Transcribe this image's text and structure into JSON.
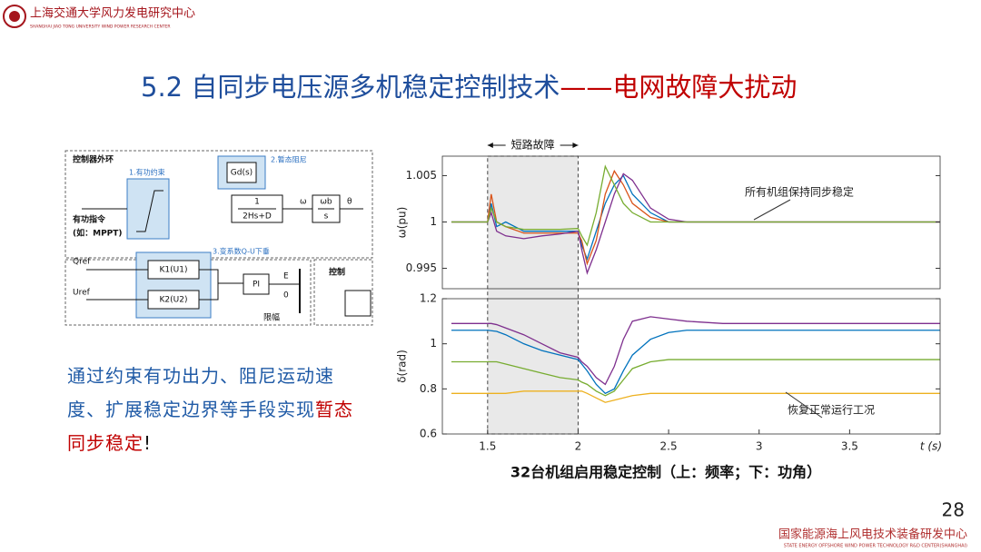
{
  "header": {
    "logo_text": "上海交通大学风力发电研究中心",
    "logo_subtext": "SHANGHAI JIAO TONG UNIVERSITY WIND POWER RESEARCH CENTER"
  },
  "title": {
    "main": "5.2 自同步电压源多机稳定控制技术",
    "highlight": "——电网故障大扰动"
  },
  "diagram": {
    "outer_loop": "控制器外环",
    "block1": "1.有功约束",
    "block2": "2.暂态阻尼",
    "block3": "3.变系数Q-U下垂",
    "p_cmd": "有功指令",
    "p_cmd_note": "(如：MPPT)",
    "gd": "Gd(s)",
    "swing_num": "1",
    "swing_den": "2Hs+D",
    "wb": "ωb",
    "s": "s",
    "theta": "θ",
    "omega": "ω",
    "k1": "K1(U1)",
    "k2": "K2(U2)",
    "pi": "PI",
    "e": "E",
    "zero": "0",
    "q_ref": "Qref",
    "u_ref": "Uref",
    "limit": "限幅",
    "ctrl": "控制"
  },
  "body_text": {
    "part1": "通过约束有功出力、阻尼运动速度、扩展稳定边界等手段实现",
    "part2": "暂态同步稳定",
    "part3": "!"
  },
  "chart_data": [
    {
      "type": "line",
      "ylabel": "ω(pu)",
      "x": [
        1.3,
        1.5,
        1.52,
        1.55,
        1.6,
        1.7,
        1.8,
        1.9,
        2.0,
        2.02,
        2.05,
        2.1,
        2.15,
        2.2,
        2.25,
        2.3,
        2.4,
        2.5,
        2.6,
        2.8,
        3.0,
        3.5,
        4.0
      ],
      "xlim": [
        1.25,
        4.0
      ],
      "ylim": [
        0.9928,
        1.0071
      ],
      "yticks": [
        0.995,
        1,
        1.005
      ],
      "fault_span": [
        1.5,
        2
      ],
      "fault_label": "短路故障",
      "annotation": "所有机组保持同步稳定",
      "series": [
        {
          "color": "#0072bd",
          "values": [
            1,
            1,
            1.002,
            0.9995,
            1.0,
            0.999,
            0.999,
            0.999,
            0.999,
            0.9975,
            0.996,
            0.999,
            1.002,
            1.004,
            1.005,
            1.003,
            1.001,
            1.0,
            1.0,
            1,
            1,
            1,
            1
          ]
        },
        {
          "color": "#d95319",
          "values": [
            1,
            1,
            1.003,
            1.0,
            0.9995,
            0.9988,
            0.9988,
            0.9988,
            0.9988,
            0.998,
            0.9955,
            0.998,
            1.003,
            1.0055,
            1.004,
            1.002,
            1.0005,
            1.0,
            1.0,
            1,
            1,
            1,
            1
          ]
        },
        {
          "color": "#7e2f8e",
          "values": [
            1,
            1,
            1.001,
            0.999,
            0.9985,
            0.9982,
            0.9985,
            0.9987,
            0.999,
            0.997,
            0.9945,
            0.997,
            1.0,
            1.003,
            1.0052,
            1.0045,
            1.0015,
            1.0003,
            1,
            1,
            1,
            1,
            1
          ]
        },
        {
          "color": "#77ac30",
          "values": [
            1,
            1,
            1.0015,
            1.0,
            0.9995,
            0.9992,
            0.9992,
            0.9992,
            0.9993,
            0.9985,
            0.9975,
            1.001,
            1.006,
            1.004,
            1.002,
            1.001,
            1.0,
            1.0,
            1,
            1,
            1,
            1,
            1
          ]
        }
      ]
    },
    {
      "type": "line",
      "ylabel": "δ(rad)",
      "xlabel": "t (s)",
      "x": [
        1.3,
        1.5,
        1.52,
        1.55,
        1.6,
        1.7,
        1.8,
        1.9,
        2.0,
        2.02,
        2.05,
        2.1,
        2.15,
        2.2,
        2.25,
        2.3,
        2.4,
        2.5,
        2.6,
        2.8,
        3.0,
        3.5,
        4.0
      ],
      "xlim": [
        1.25,
        4.0
      ],
      "xticks": [
        1.5,
        2,
        2.5,
        3,
        3.5
      ],
      "ylim": [
        0.6,
        1.2
      ],
      "yticks": [
        0.6,
        0.8,
        1,
        1.2
      ],
      "annotation": "恢复正常运行工况",
      "series": [
        {
          "color": "#0072bd",
          "values": [
            1.06,
            1.06,
            1.058,
            1.055,
            1.04,
            1.0,
            0.97,
            0.95,
            0.93,
            0.91,
            0.88,
            0.82,
            0.78,
            0.8,
            0.88,
            0.95,
            1.02,
            1.05,
            1.06,
            1.06,
            1.06,
            1.06,
            1.06
          ]
        },
        {
          "color": "#edb120",
          "values": [
            0.78,
            0.78,
            0.78,
            0.78,
            0.78,
            0.79,
            0.79,
            0.79,
            0.79,
            0.79,
            0.78,
            0.76,
            0.74,
            0.75,
            0.76,
            0.77,
            0.78,
            0.78,
            0.78,
            0.78,
            0.78,
            0.78,
            0.78
          ]
        },
        {
          "color": "#7e2f8e",
          "values": [
            1.09,
            1.09,
            1.09,
            1.085,
            1.07,
            1.04,
            1.0,
            0.96,
            0.94,
            0.92,
            0.9,
            0.85,
            0.82,
            0.9,
            1.02,
            1.1,
            1.12,
            1.11,
            1.1,
            1.09,
            1.09,
            1.09,
            1.09
          ]
        },
        {
          "color": "#77ac30",
          "values": [
            0.92,
            0.92,
            0.92,
            0.92,
            0.91,
            0.89,
            0.87,
            0.85,
            0.84,
            0.83,
            0.82,
            0.79,
            0.77,
            0.79,
            0.84,
            0.89,
            0.92,
            0.93,
            0.93,
            0.93,
            0.93,
            0.93,
            0.93
          ]
        }
      ]
    }
  ],
  "caption": "32台机组启用稳定控制（上：频率；下：功角）",
  "page_number": 28,
  "footer": {
    "title": "国家能源海上风电技术装备研发中心",
    "subtitle": "STATE ENERGY OFFSHORE WIND POWER TECHNOLOGY R&D CENTER(SHANGHAI)"
  }
}
